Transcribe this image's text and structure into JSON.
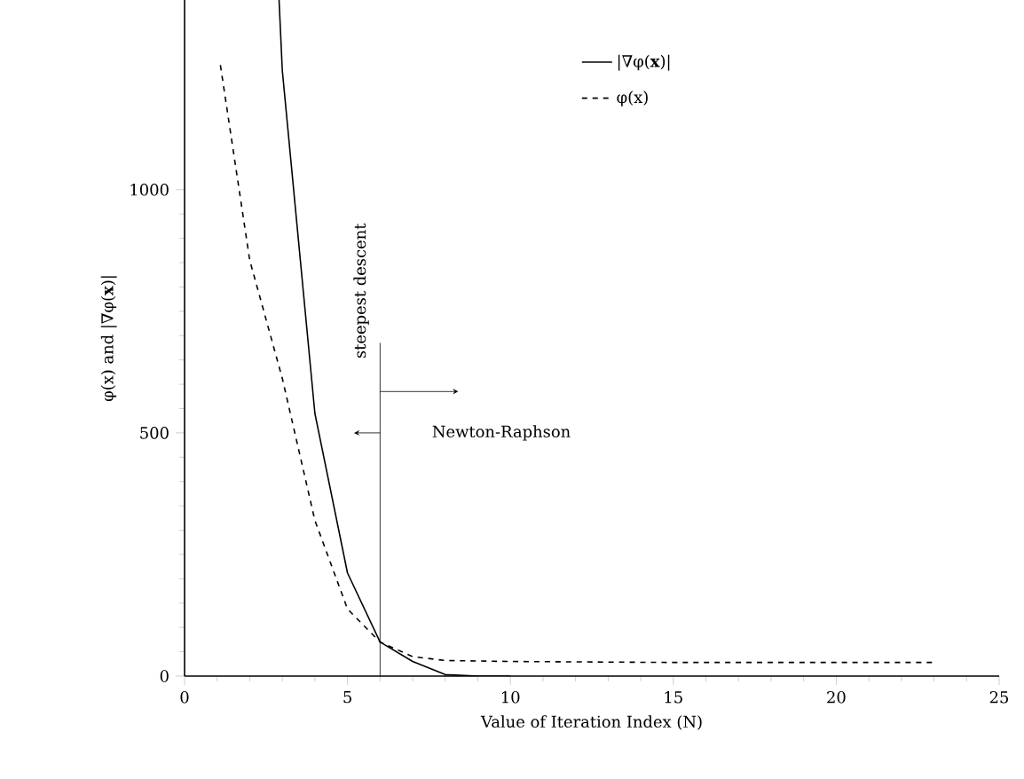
{
  "chart_data": {
    "type": "line",
    "xlabel": "Value of Iteration Index (N)",
    "ylabel": "φ(x) and |∇φ(**x**)|",
    "xlim": [
      0,
      25
    ],
    "ylim": [
      0,
      1390
    ],
    "xticks": [
      0,
      5,
      10,
      15,
      20,
      25
    ],
    "yticks": [
      0,
      500,
      1000
    ],
    "series": [
      {
        "name": "|∇φ(**x**)|",
        "color": "#000000",
        "line_style": "solid",
        "x": [
          2.9,
          3,
          4,
          5,
          6,
          7,
          8,
          9,
          10
        ],
        "values": [
          1390,
          1245,
          540,
          212,
          70,
          30,
          3,
          0,
          0
        ]
      },
      {
        "name": "φ(x)",
        "color": "#000000",
        "line_style": "dashed",
        "x": [
          1.1,
          2,
          3,
          4,
          5,
          6,
          7,
          8,
          10,
          15,
          20,
          23
        ],
        "values": [
          1256,
          855,
          612,
          320,
          138,
          70,
          40,
          32,
          30,
          28,
          28,
          28
        ]
      }
    ],
    "ref_lines": [
      {
        "axis": "x",
        "value": 6,
        "color": "#000000"
      }
    ],
    "annotations": [
      "steepest descent",
      "Newton-Raphson"
    ],
    "legend": "top right",
    "grid": false,
    "marker": "none"
  }
}
